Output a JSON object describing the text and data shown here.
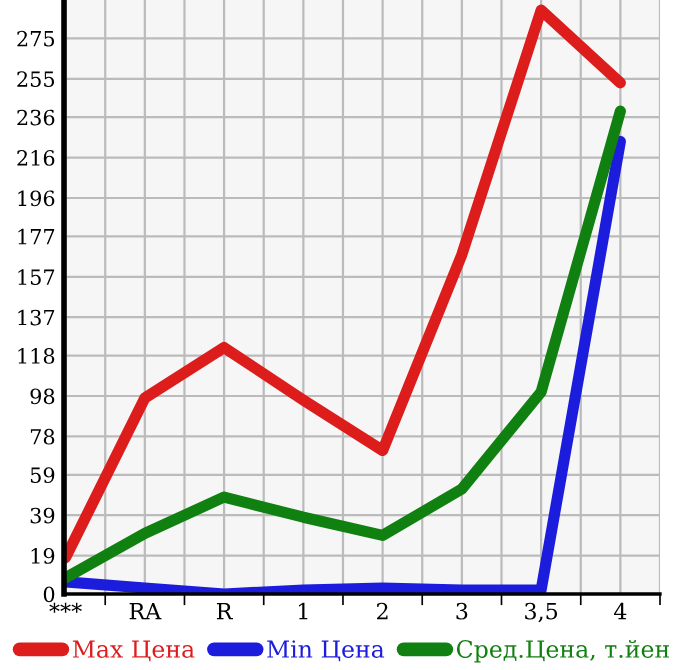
{
  "chart_data": {
    "type": "line",
    "categories": [
      "***",
      "RA",
      "R",
      "1",
      "2",
      "3",
      "3,5",
      "4"
    ],
    "series": [
      {
        "name": "Max Цена",
        "color": "#dd1c1c",
        "values": [
          18,
          97,
          122,
          96,
          71,
          168,
          289,
          253
        ]
      },
      {
        "name": "Min Цена",
        "color": "#1c1cdd",
        "values": [
          6,
          3,
          0,
          2,
          3,
          2,
          2,
          224
        ]
      },
      {
        "name": "Сред.Цена, т.йен",
        "color": "#108010",
        "values": [
          8,
          30,
          48,
          38,
          29,
          52,
          100,
          239
        ]
      }
    ],
    "ylim": [
      0,
      294
    ],
    "yticks": [
      0,
      19,
      39,
      59,
      78,
      98,
      118,
      137,
      157,
      177,
      196,
      216,
      236,
      255,
      275
    ],
    "grid": true,
    "legend": "bottom",
    "marker": "none",
    "line_style": "solid"
  }
}
